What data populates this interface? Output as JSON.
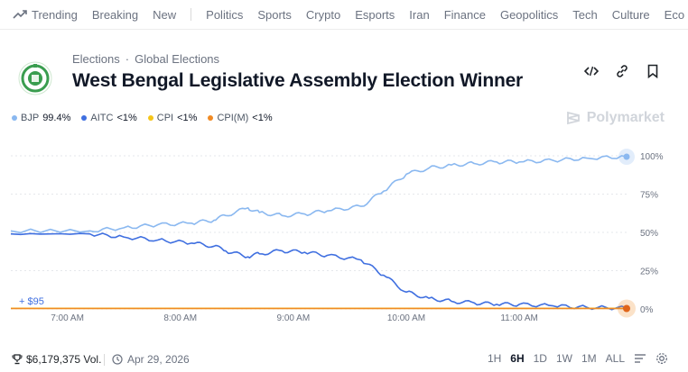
{
  "nav": {
    "items": [
      "Trending",
      "Breaking",
      "New",
      "Politics",
      "Sports",
      "Crypto",
      "Esports",
      "Iran",
      "Finance",
      "Geopolitics",
      "Tech",
      "Culture",
      "Eco"
    ]
  },
  "breadcrumb": {
    "items": [
      "Elections",
      "Global Elections"
    ],
    "separator": "·"
  },
  "title": "West Bengal Legislative Assembly Election Winner",
  "legend": [
    {
      "name": "BJP",
      "value": "99.4%",
      "color": "#8ab8f0"
    },
    {
      "name": "AITC",
      "value": "<1%",
      "color": "#3f6fe0"
    },
    {
      "name": "CPI",
      "value": "<1%",
      "color": "#f5c518"
    },
    {
      "name": "CPI(M)",
      "value": "<1%",
      "color": "#f08a24"
    }
  ],
  "watermark": "Polymarket",
  "chart_data": {
    "type": "line",
    "x_ticks": [
      "7:00 AM",
      "8:00 AM",
      "9:00 AM",
      "10:00 AM",
      "11:00 AM"
    ],
    "y_ticks": [
      "100%",
      "75%",
      "50%",
      "25%",
      "0%"
    ],
    "ylim": [
      0,
      100
    ],
    "series": [
      {
        "name": "BJP",
        "color": "#8ab8f0",
        "points": [
          [
            6.5,
            51
          ],
          [
            7.2,
            51
          ],
          [
            7.5,
            53
          ],
          [
            7.8,
            55
          ],
          [
            8.1,
            56
          ],
          [
            8.3,
            58
          ],
          [
            8.4,
            61
          ],
          [
            8.6,
            66
          ],
          [
            8.7,
            63
          ],
          [
            8.9,
            61
          ],
          [
            9.1,
            62
          ],
          [
            9.3,
            64
          ],
          [
            9.6,
            67
          ],
          [
            9.8,
            77
          ],
          [
            10.0,
            88
          ],
          [
            10.2,
            92
          ],
          [
            10.4,
            94
          ],
          [
            10.6,
            95
          ],
          [
            10.8,
            96
          ],
          [
            11.0,
            96
          ],
          [
            11.3,
            97
          ],
          [
            11.6,
            98.5
          ],
          [
            11.95,
            99.4
          ]
        ]
      },
      {
        "name": "AITC",
        "color": "#3f6fe0",
        "points": [
          [
            6.5,
            49
          ],
          [
            7.2,
            49
          ],
          [
            7.5,
            47
          ],
          [
            7.8,
            45
          ],
          [
            8.1,
            43
          ],
          [
            8.3,
            41
          ],
          [
            8.4,
            38
          ],
          [
            8.6,
            34
          ],
          [
            8.7,
            36
          ],
          [
            8.9,
            38
          ],
          [
            9.1,
            37
          ],
          [
            9.3,
            35
          ],
          [
            9.6,
            32
          ],
          [
            9.8,
            22
          ],
          [
            10.0,
            11
          ],
          [
            10.2,
            7
          ],
          [
            10.4,
            5
          ],
          [
            10.6,
            4
          ],
          [
            10.8,
            3
          ],
          [
            11.0,
            3
          ],
          [
            11.3,
            2
          ],
          [
            11.6,
            1
          ],
          [
            11.95,
            0.6
          ]
        ]
      },
      {
        "name": "CPI",
        "color": "#f5c518",
        "points": [
          [
            6.5,
            0.4
          ],
          [
            11.95,
            0.4
          ]
        ]
      },
      {
        "name": "CPI(M)",
        "color": "#f08a24",
        "points": [
          [
            6.5,
            0.3
          ],
          [
            11.95,
            0.3
          ]
        ]
      }
    ],
    "annotation": "+ $95"
  },
  "footer": {
    "volume": "$6,179,375 Vol.",
    "date": "Apr 29, 2026",
    "ranges": [
      "1H",
      "6H",
      "1D",
      "1W",
      "1M",
      "ALL"
    ],
    "active_range": "6H"
  }
}
